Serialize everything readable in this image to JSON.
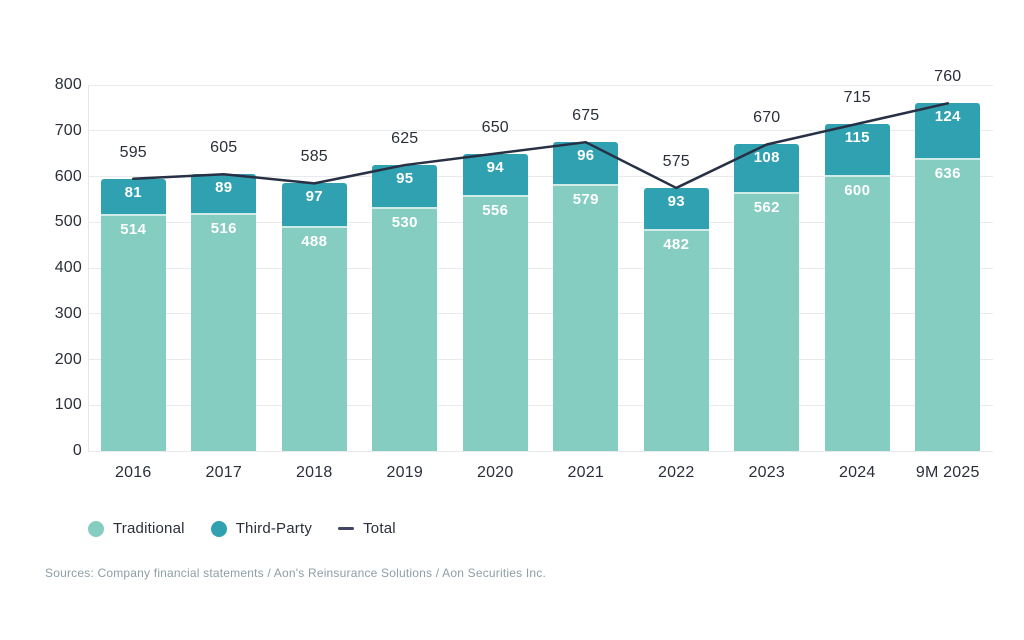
{
  "chart_data": {
    "type": "bar",
    "subtype": "stacked-bars-with-total-line",
    "title": "",
    "xlabel": "",
    "ylabel": "",
    "categories": [
      "2016",
      "2017",
      "2018",
      "2019",
      "2020",
      "2021",
      "2022",
      "2023",
      "2024",
      "9M 2025"
    ],
    "series": [
      {
        "name": "Traditional",
        "color": "#85ccc1",
        "values": [
          514,
          516,
          488,
          530,
          556,
          579,
          482,
          562,
          600,
          636
        ]
      },
      {
        "name": "Third-Party",
        "color": "#30a1b0",
        "values": [
          81,
          89,
          97,
          95,
          94,
          96,
          93,
          108,
          115,
          124
        ]
      }
    ],
    "line_series": {
      "name": "Total",
      "color": "#273044",
      "values": [
        595,
        605,
        585,
        625,
        650,
        675,
        575,
        670,
        715,
        760
      ]
    },
    "ylim": [
      0,
      800
    ],
    "yticks": [
      0,
      100,
      200,
      300,
      400,
      500,
      600,
      700,
      800
    ],
    "grid": true,
    "legend_position": "bottom-left",
    "legend": [
      {
        "label": "Traditional",
        "marker": "circle",
        "color": "#85ccc1"
      },
      {
        "label": "Third-Party",
        "marker": "circle",
        "color": "#30a1b0"
      },
      {
        "label": "Total",
        "marker": "dash",
        "color": "#414564"
      }
    ]
  },
  "footer": {
    "sources": "Sources: Company financial statements / Aon's Reinsurance Solutions / Aon Securities Inc."
  },
  "colors": {
    "background": "#ffffff",
    "grid": "#e8eaec",
    "axis_text": "#2a2f3a",
    "bar_value_text": "#ffffff",
    "total_line": "#273044",
    "segment_divider": "#cfebe5",
    "sources_text": "#8e9da6"
  }
}
